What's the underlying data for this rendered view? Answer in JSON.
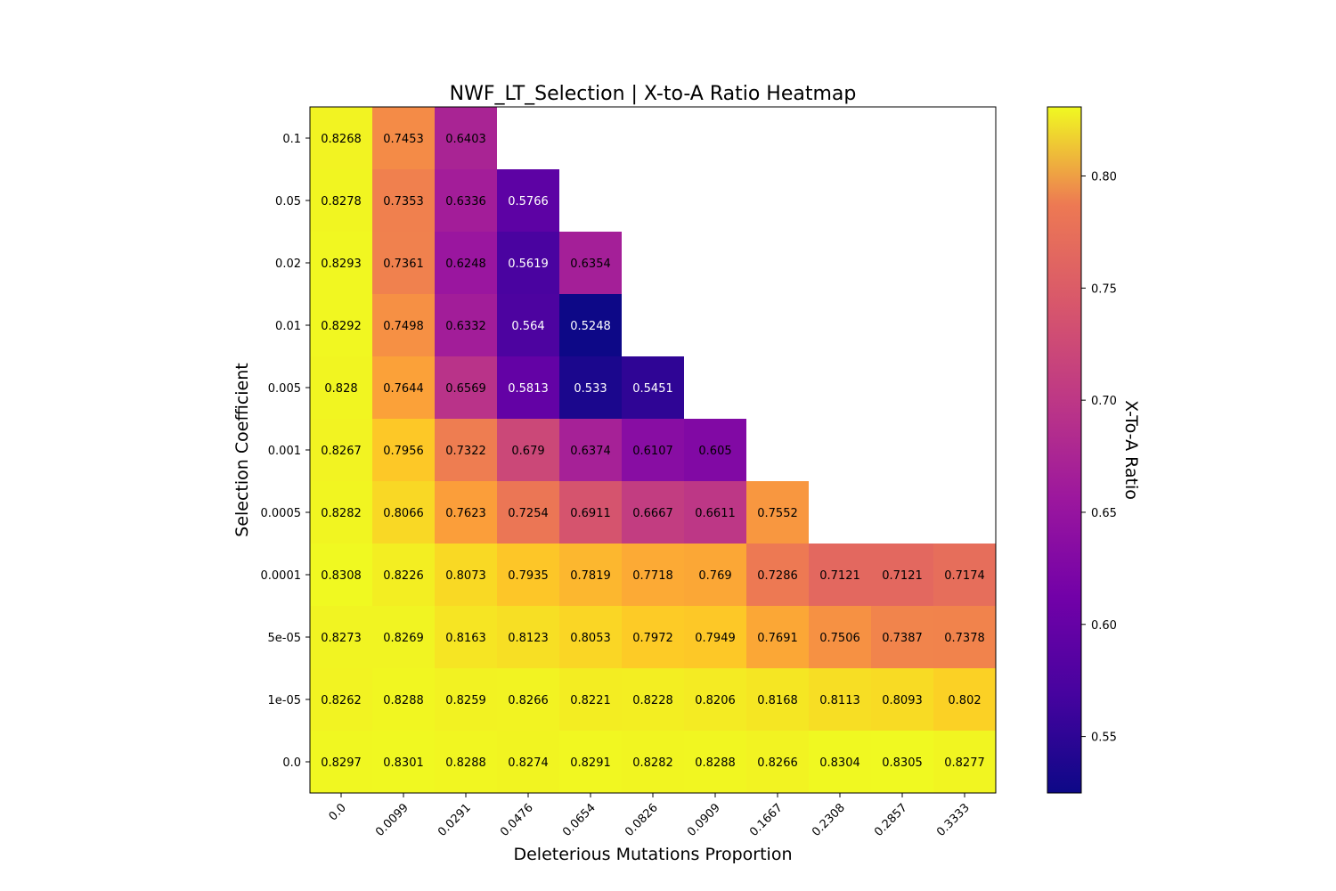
{
  "chart_data": {
    "type": "heatmap",
    "title": "NWF_LT_Selection | X-to-A Ratio Heatmap",
    "xlabel": "Deleterious Mutations Proportion",
    "ylabel": "Selection Coefficient",
    "colorbar_label": "X-To-A Ratio",
    "colormap": "plasma",
    "vmin": 0.5248,
    "vmax": 0.8308,
    "colorbar_ticks": [
      "0.55",
      "0.60",
      "0.65",
      "0.70",
      "0.75",
      "0.80"
    ],
    "x_categories": [
      "0.0",
      "0.0099",
      "0.0291",
      "0.0476",
      "0.0654",
      "0.0826",
      "0.0909",
      "0.1667",
      "0.2308",
      "0.2857",
      "0.3333"
    ],
    "y_categories": [
      "0.1",
      "0.05",
      "0.02",
      "0.01",
      "0.005",
      "0.001",
      "0.0005",
      "0.0001",
      "5e-05",
      "1e-05",
      "0.0"
    ],
    "values": [
      [
        0.8268,
        0.7453,
        0.6403,
        null,
        null,
        null,
        null,
        null,
        null,
        null,
        null
      ],
      [
        0.8278,
        0.7353,
        0.6336,
        0.5766,
        null,
        null,
        null,
        null,
        null,
        null,
        null
      ],
      [
        0.8293,
        0.7361,
        0.6248,
        0.5619,
        0.6354,
        null,
        null,
        null,
        null,
        null,
        null
      ],
      [
        0.8292,
        0.7498,
        0.6332,
        0.564,
        0.5248,
        null,
        null,
        null,
        null,
        null,
        null
      ],
      [
        0.828,
        0.7644,
        0.6569,
        0.5813,
        0.533,
        0.5451,
        null,
        null,
        null,
        null,
        null
      ],
      [
        0.8267,
        0.7956,
        0.7322,
        0.679,
        0.6374,
        0.6107,
        0.605,
        null,
        null,
        null,
        null
      ],
      [
        0.8282,
        0.8066,
        0.7623,
        0.7254,
        0.6911,
        0.6667,
        0.6611,
        0.7552,
        null,
        null,
        null
      ],
      [
        0.8308,
        0.8226,
        0.8073,
        0.7935,
        0.7819,
        0.7718,
        0.769,
        0.7286,
        0.7121,
        0.7121,
        0.7174
      ],
      [
        0.8273,
        0.8269,
        0.8163,
        0.8123,
        0.8053,
        0.7972,
        0.7949,
        0.7691,
        0.7506,
        0.7387,
        0.7378
      ],
      [
        0.8262,
        0.8288,
        0.8259,
        0.8266,
        0.8221,
        0.8228,
        0.8206,
        0.8168,
        0.8113,
        0.8093,
        0.802
      ],
      [
        0.8297,
        0.8301,
        0.8288,
        0.8274,
        0.8291,
        0.8282,
        0.8288,
        0.8266,
        0.8304,
        0.8305,
        0.8277
      ]
    ]
  }
}
